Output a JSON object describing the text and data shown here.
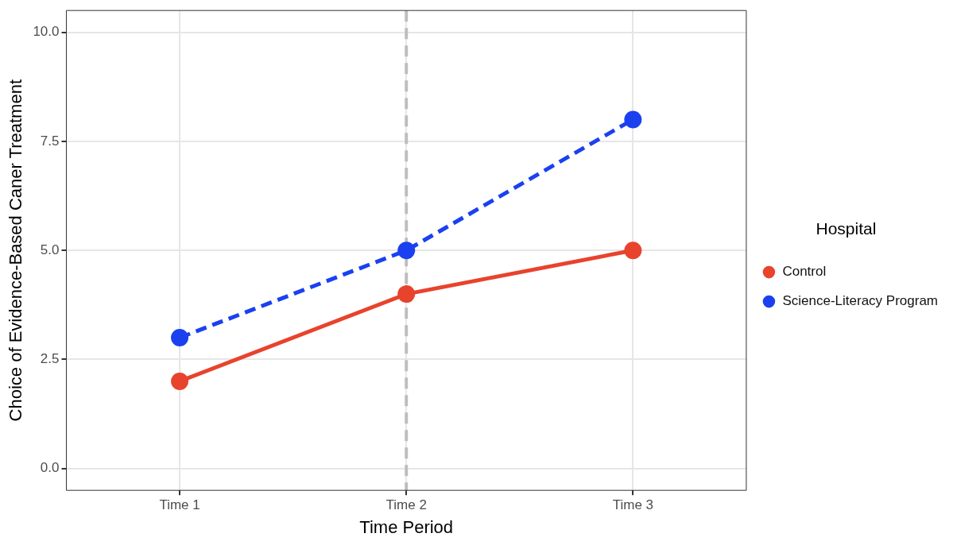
{
  "chart_data": {
    "type": "line",
    "xlabel": "Time Period",
    "ylabel": "Choice of Evidence-Based Caner Treatment",
    "legend_title": "Hospital",
    "legend": "right",
    "categories": [
      "Time 1",
      "Time 2",
      "Time 3"
    ],
    "series": [
      {
        "name": "Control",
        "color": "#e8432d",
        "values": [
          2,
          4,
          5
        ],
        "line_style": "solid"
      },
      {
        "name": "Science-Literacy Program",
        "color": "#1b40f0",
        "values": [
          3,
          5,
          8
        ],
        "line_style": "dashed"
      }
    ],
    "ylim": [
      -0.5,
      10.5
    ],
    "yticks": [
      {
        "value": 0,
        "label": "0.0"
      },
      {
        "value": 2.5,
        "label": "2.5"
      },
      {
        "value": 5,
        "label": "5.0"
      },
      {
        "value": 7.5,
        "label": "7.5"
      },
      {
        "value": 10,
        "label": "10.0"
      }
    ],
    "grid": true,
    "marker": "circle",
    "ref_lines": [
      {
        "axis": "x",
        "value": "Time 2",
        "color": "#bebebe",
        "line_style": "dashed"
      }
    ]
  }
}
